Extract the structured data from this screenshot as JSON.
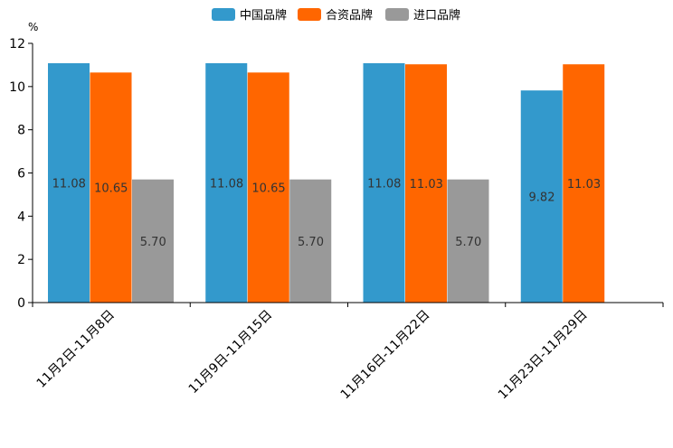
{
  "chart_data": {
    "type": "bar",
    "categories": [
      "11月2日-11月8日",
      "11月9日-11月15日",
      "11月16日-11月22日",
      "11月23日-11月29日"
    ],
    "series": [
      {
        "name": "中国品牌",
        "color": "#3399cc",
        "values": [
          11.08,
          11.08,
          11.08,
          9.82
        ],
        "labels": [
          "11.08",
          "11.08",
          "11.08",
          "9.82"
        ]
      },
      {
        "name": "合资品牌",
        "color": "#ff6600",
        "values": [
          10.65,
          10.65,
          11.03,
          11.03
        ],
        "labels": [
          "10.65",
          "10.65",
          "11.03",
          "11.03"
        ]
      },
      {
        "name": "进口品牌",
        "color": "#999999",
        "values": [
          5.7,
          5.7,
          5.7,
          null
        ],
        "labels": [
          "5.70",
          "5.70",
          "5.70",
          null
        ]
      }
    ],
    "ylabel": "%",
    "ylim": [
      0,
      12
    ],
    "yticks": [
      "0",
      "2",
      "4",
      "6",
      "8",
      "10",
      "12"
    ],
    "legend_position": "top-center",
    "grid": false
  }
}
